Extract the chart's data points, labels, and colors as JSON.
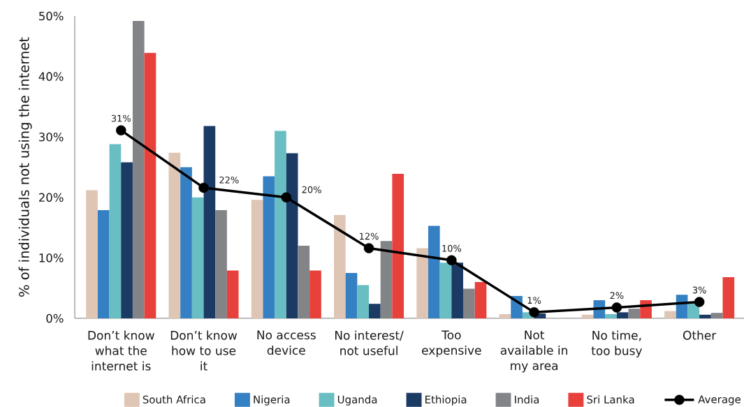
{
  "chart_data": {
    "type": "bar",
    "ylabel": "% of individuals not using the internet",
    "categories": [
      "Don’t know what the internet is",
      "Don’t know how to use it",
      "No access device",
      "No interest/ not useful",
      "Too expensive",
      "Not available in my area",
      "No time, too busy",
      "Other"
    ],
    "series": [
      {
        "name": "South Africa",
        "color": "#dfc5b4",
        "values": [
          21.2,
          27.4,
          19.6,
          17.1,
          11.6,
          0.7,
          0.6,
          1.2
        ]
      },
      {
        "name": "Nigeria",
        "color": "#3580c3",
        "values": [
          17.9,
          25.0,
          23.5,
          7.5,
          15.3,
          3.7,
          3.0,
          3.9
        ]
      },
      {
        "name": "Uganda",
        "color": "#69bec4",
        "values": [
          28.8,
          20.0,
          31.0,
          5.5,
          9.2,
          1.0,
          0.7,
          2.6
        ]
      },
      {
        "name": "Ethiopia",
        "color": "#1b3a64",
        "values": [
          25.8,
          31.8,
          27.3,
          2.4,
          9.2,
          0.8,
          1.0,
          0.6
        ]
      },
      {
        "name": "India",
        "color": "#838488",
        "values": [
          49.2,
          17.9,
          12.0,
          12.8,
          4.9,
          0,
          1.6,
          0.9
        ]
      },
      {
        "name": "Sri Lanka",
        "color": "#e8403a",
        "values": [
          43.9,
          7.9,
          7.9,
          23.9,
          6.0,
          0,
          3.0,
          6.8
        ]
      },
      {
        "name": "Average",
        "type": "line",
        "color": "#000000",
        "marker": "circle",
        "values": [
          31.1,
          21.6,
          20.0,
          11.6,
          9.6,
          1.0,
          1.8,
          2.7
        ],
        "value_labels": [
          "31%",
          "22%",
          "20%",
          "12%",
          "10%",
          "1%",
          "2%",
          "3%"
        ]
      }
    ],
    "ylim": [
      0,
      50
    ],
    "yticks": [
      {
        "value": 0,
        "label": "0%"
      },
      {
        "value": 10,
        "label": "10%"
      },
      {
        "value": 20,
        "label": "20%"
      },
      {
        "value": 30,
        "label": "30%"
      },
      {
        "value": 40,
        "label": "40%"
      },
      {
        "value": 50,
        "label": "50%"
      }
    ],
    "legend": "bottom"
  }
}
